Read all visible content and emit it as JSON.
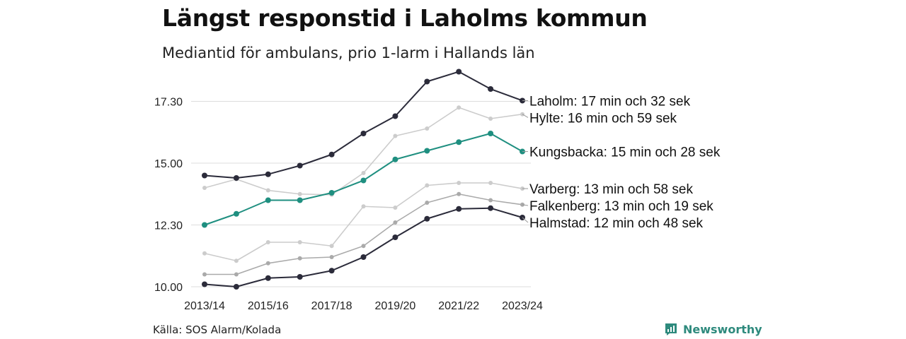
{
  "title": "Längst responstid i Laholms kommun",
  "subtitle": "Mediantid för ambulans, prio 1-larm i Hallands län",
  "source": "Källa: SOS Alarm/Kolada",
  "brand": {
    "name": "Newsworthy",
    "icon": "newsworthy-logo-icon",
    "color": "#2e8a7d"
  },
  "chart_data": {
    "type": "line",
    "x": [
      "2013/14",
      "2014/15",
      "2015/16",
      "2016/17",
      "2017/18",
      "2018/19",
      "2019/20",
      "2020/21",
      "2021/22",
      "2022/23",
      "2023/24"
    ],
    "x_tick_labels": [
      "2013/14",
      "2015/16",
      "2017/18",
      "2019/20",
      "2021/22",
      "2023/24"
    ],
    "y_ticks": [
      10,
      12.5,
      15,
      17.5
    ],
    "y_tick_labels": [
      "10.00",
      "12.30",
      "15.00",
      "17.30"
    ],
    "ylim": [
      9.8,
      18.8
    ],
    "grid": true,
    "legend": "end-labels",
    "series": [
      {
        "name": "Halmstad",
        "label": "Halmstad: 12 min och 48 sek",
        "color": "#2b2b3a",
        "highlight": true,
        "values": [
          10.1,
          10.0,
          10.35,
          10.4,
          10.65,
          11.2,
          12.0,
          12.75,
          13.15,
          13.18,
          12.8
        ]
      },
      {
        "name": "Falkenberg",
        "label": "Falkenberg: 13 min och 19 sek",
        "color": "#aaaaaa",
        "highlight": false,
        "values": [
          10.5,
          10.5,
          10.95,
          11.15,
          11.2,
          11.65,
          12.6,
          13.4,
          13.75,
          13.5,
          13.32
        ]
      },
      {
        "name": "Varberg",
        "label": "Varberg: 13 min och 58 sek",
        "color": "#cccccc",
        "highlight": false,
        "values": [
          11.35,
          11.05,
          11.8,
          11.8,
          11.65,
          13.25,
          13.2,
          14.1,
          14.2,
          14.2,
          13.97
        ]
      },
      {
        "name": "Kungsbacka",
        "label": "Kungsbacka: 15 min och 28 sek",
        "color": "#1f8f80",
        "highlight": true,
        "values": [
          12.5,
          12.95,
          13.5,
          13.5,
          13.8,
          14.3,
          15.15,
          15.5,
          15.85,
          16.2,
          15.47
        ]
      },
      {
        "name": "Hylte",
        "label": "Hylte: 16 min och 59 sek",
        "color": "#cccccc",
        "highlight": false,
        "values": [
          14.0,
          14.35,
          13.9,
          13.75,
          13.72,
          14.6,
          16.1,
          16.4,
          17.25,
          16.8,
          16.98
        ]
      },
      {
        "name": "Laholm",
        "label": "Laholm: 17 min och 32 sek",
        "color": "#2b2b3a",
        "highlight": true,
        "values": [
          14.5,
          14.4,
          14.55,
          14.9,
          15.35,
          16.2,
          16.9,
          18.3,
          18.7,
          18.0,
          17.53
        ]
      }
    ]
  }
}
